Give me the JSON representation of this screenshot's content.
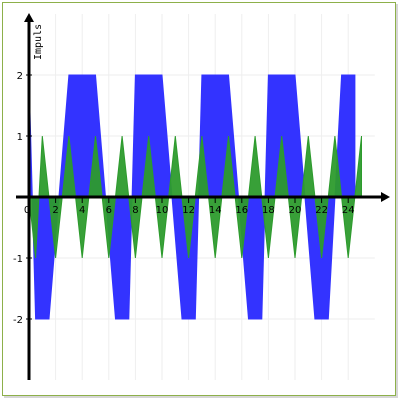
{
  "chart_data": {
    "type": "area",
    "title": "",
    "xlabel": "",
    "ylabel": "Impuls",
    "xlim": [
      0,
      26
    ],
    "ylim": [
      -3,
      3
    ],
    "x_ticks": [
      0,
      2,
      4,
      6,
      8,
      10,
      12,
      14,
      16,
      18,
      20,
      22,
      24
    ],
    "y_ticks": [
      -2,
      -1,
      1,
      2
    ],
    "grid": true,
    "legend": "none",
    "series": [
      {
        "color": "#3333ff",
        "points": [
          [
            0,
            2
          ],
          [
            0.5,
            -2
          ],
          [
            1.5,
            -2
          ],
          [
            3,
            2
          ],
          [
            5,
            2
          ],
          [
            6.5,
            -2
          ],
          [
            7.5,
            -2
          ],
          [
            8,
            2
          ],
          [
            10,
            2
          ],
          [
            11.5,
            -2
          ],
          [
            12.5,
            -2
          ],
          [
            13,
            2
          ],
          [
            15,
            2
          ],
          [
            16.5,
            -2
          ],
          [
            17.5,
            -2
          ],
          [
            18,
            2
          ],
          [
            20,
            2
          ],
          [
            21.5,
            -2
          ],
          [
            22.5,
            -2
          ],
          [
            23.5,
            2
          ],
          [
            24.5,
            2
          ],
          [
            24.5,
            0
          ]
        ]
      },
      {
        "color": "#2d9b2d",
        "points": [
          [
            0,
            0
          ],
          [
            0.5,
            -1
          ],
          [
            1,
            1
          ],
          [
            2,
            -1
          ],
          [
            3,
            1
          ],
          [
            4,
            -1
          ],
          [
            5,
            1
          ],
          [
            6,
            -1
          ],
          [
            7,
            1
          ],
          [
            8,
            -1
          ],
          [
            9,
            1
          ],
          [
            10,
            -1
          ],
          [
            11,
            1
          ],
          [
            12,
            -1
          ],
          [
            13,
            1
          ],
          [
            14,
            -1
          ],
          [
            15,
            1
          ],
          [
            16,
            -1
          ],
          [
            17,
            1
          ],
          [
            18,
            -1
          ],
          [
            19,
            1
          ],
          [
            20,
            -1
          ],
          [
            21,
            1
          ],
          [
            22,
            -1
          ],
          [
            23,
            1
          ],
          [
            24,
            -1
          ],
          [
            25,
            1
          ],
          [
            25,
            0
          ]
        ]
      }
    ]
  }
}
